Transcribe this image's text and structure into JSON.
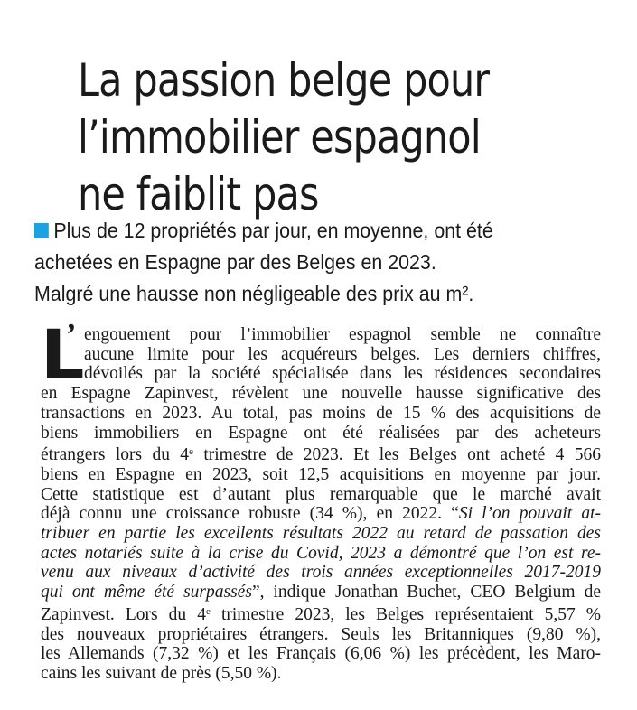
{
  "article": {
    "headline": {
      "lines": [
        "La passion belge pour",
        "l’immobilier espagnol",
        "ne faiblit pas"
      ]
    },
    "chapeau": {
      "bullet_color": "#1aa3e0",
      "lines": [
        "Plus de 12 propriétés par jour, en moyenne, ont été",
        "achetées en Espagne par des Belges en 2023.",
        "Malgré une hausse non négligeable des prix au m²."
      ]
    },
    "body": {
      "drop_cap": "L",
      "drop_cap_apostrophe": "’",
      "line_1": "engouement pour l’immobilier espagnol semble ne connaître",
      "line_2": "aucune limite pour les acquéreurs belges. Les derniers chiffres,",
      "line_3": "dévoilés par la société spécialisée dans les résidences secondaires",
      "line_4": "en Espagne Zapinvest, révèlent une nouvelle hausse significative des",
      "line_5": "transactions en 2023. Au total, pas moins de 15 % des acquisitions de",
      "line_6": "biens immobiliers en Espagne ont été réalisées par des acheteurs",
      "line_7_a": "étrangers lors du 4",
      "line_7_sup": "e",
      "line_7_b": " trimestre de 2023. Et les Belges ont acheté 4 566",
      "line_8": "biens en Espagne en 2023, soit 12,5 acquisitions en moyenne par jour.",
      "line_9": "Cette statistique est d’autant plus remarquable que le marché avait",
      "line_10_a": "déjà connu une croissance robuste (34 %), en 2022. “",
      "line_10_em": "Si l’on pouvait at-",
      "line_11_em": "tribuer en partie les excellents résultats 2022 au retard de passation des",
      "line_12_em": "actes notariés suite à la crise du Covid, 2023 a démontré que l’on est re-",
      "line_13_em": "venu aux niveaux d’activité des trois années exceptionnelles 2017-2019",
      "line_14_em": "qui ont même été surpassés",
      "line_14_b": "”, indique Jonathan Buchet, CEO Belgium de",
      "line_15_a": "Zapinvest. Lors du 4",
      "line_15_sup": "e",
      "line_15_b": " trimestre 2023, les Belges représentaient 5,57 %",
      "line_16": "des nouveaux propriétaires étrangers. Seuls les Britanniques (9,80 %),",
      "line_17": "les Allemands (7,32 %) et les Français (6,06 %) les précèdent, les Maro-",
      "line_18": "cains les suivant de près (5,50 %)."
    }
  }
}
